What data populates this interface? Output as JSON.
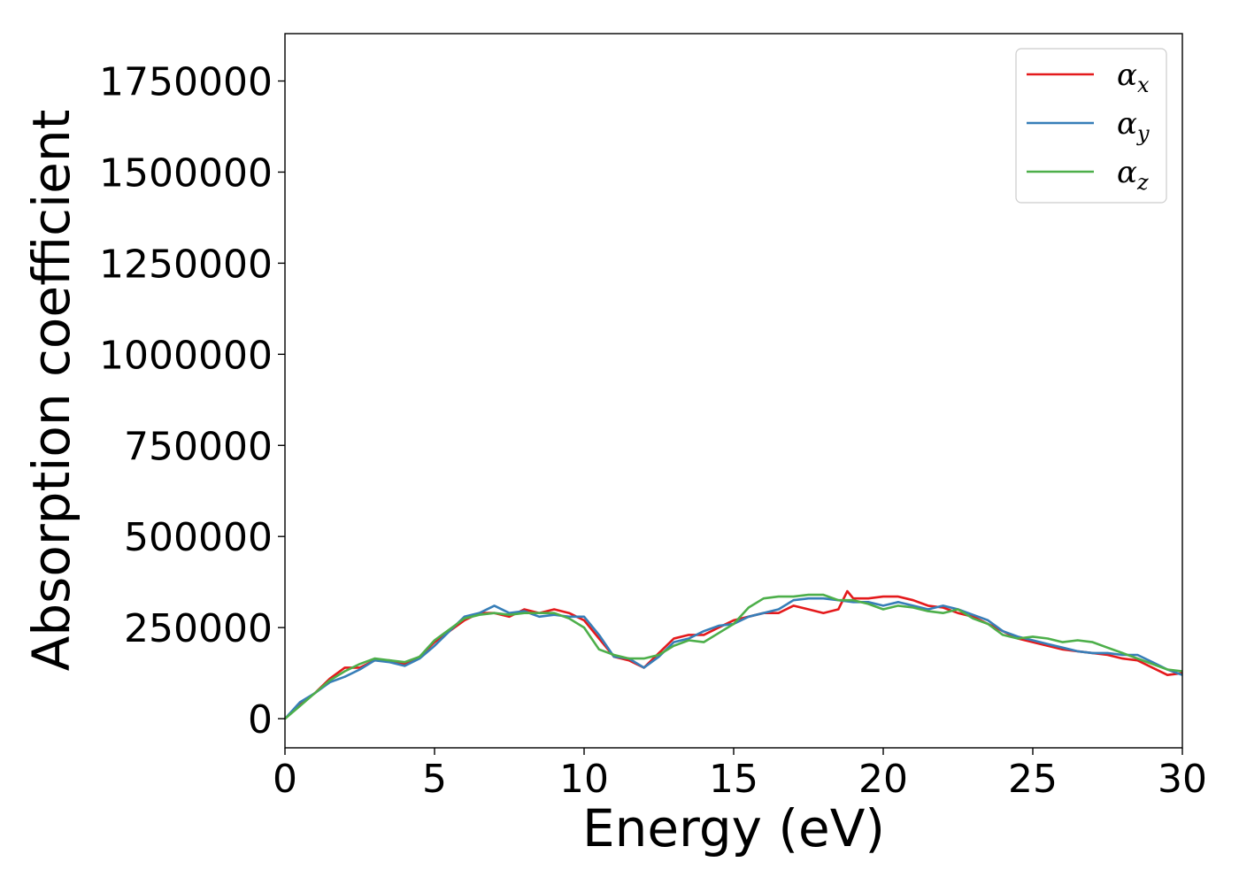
{
  "chart_data": {
    "type": "line",
    "xlabel": "Energy (eV)",
    "ylabel": "Absorption coefficient",
    "xlim": [
      0,
      30
    ],
    "ylim": [
      -80000,
      1880000
    ],
    "x_ticks": [
      0,
      5,
      10,
      15,
      20,
      25,
      30
    ],
    "y_ticks": [
      0,
      250000,
      500000,
      750000,
      1000000,
      1250000,
      1500000,
      1750000
    ],
    "x_tick_labels": [
      "0",
      "5",
      "10",
      "15",
      "20",
      "25",
      "30"
    ],
    "y_tick_labels": [
      "0",
      "250000",
      "500000",
      "750000",
      "1000000",
      "1250000",
      "1500000",
      "1750000"
    ],
    "grid": false,
    "legend_position": "top-right",
    "series": [
      {
        "name": "α_x",
        "legend_base": "α",
        "legend_sub": "x",
        "color": "#e41a1c",
        "x": [
          0,
          0.5,
          1,
          1.5,
          2,
          2.5,
          3,
          3.5,
          4,
          4.5,
          5,
          5.5,
          6,
          6.5,
          7,
          7.5,
          8,
          8.5,
          9,
          9.5,
          10,
          10.5,
          11,
          11.5,
          12,
          12.5,
          13,
          13.5,
          14,
          14.5,
          15,
          15.5,
          16,
          16.5,
          17,
          17.5,
          18,
          18.5,
          18.8,
          19,
          19.5,
          20,
          20.5,
          21,
          21.5,
          22,
          22.5,
          23,
          23.5,
          24,
          24.5,
          25,
          25.5,
          26,
          26.5,
          27,
          27.5,
          28,
          28.5,
          29,
          29.5,
          30
        ],
        "y": [
          0,
          40000,
          70000,
          110000,
          140000,
          140000,
          160000,
          160000,
          150000,
          170000,
          210000,
          240000,
          270000,
          290000,
          290000,
          280000,
          300000,
          290000,
          300000,
          290000,
          270000,
          220000,
          170000,
          160000,
          140000,
          180000,
          220000,
          230000,
          230000,
          250000,
          270000,
          280000,
          290000,
          290000,
          310000,
          300000,
          290000,
          300000,
          350000,
          330000,
          330000,
          335000,
          335000,
          325000,
          310000,
          305000,
          290000,
          280000,
          260000,
          240000,
          220000,
          210000,
          200000,
          190000,
          185000,
          180000,
          175000,
          165000,
          160000,
          140000,
          120000,
          125000
        ]
      },
      {
        "name": "α_y",
        "legend_base": "α",
        "legend_sub": "y",
        "color": "#377eb8",
        "x": [
          0,
          0.5,
          1,
          1.5,
          2,
          2.5,
          3,
          3.5,
          4,
          4.5,
          5,
          5.5,
          6,
          6.5,
          7,
          7.5,
          8,
          8.5,
          9,
          9.5,
          10,
          10.5,
          11,
          11.5,
          12,
          12.5,
          13,
          13.5,
          14,
          14.5,
          15,
          15.5,
          16,
          16.5,
          17,
          17.5,
          18,
          18.5,
          19,
          19.5,
          20,
          20.5,
          21,
          21.5,
          22,
          22.5,
          23,
          23.5,
          24,
          24.5,
          25,
          25.5,
          26,
          26.5,
          27,
          27.5,
          28,
          28.5,
          29,
          29.5,
          30
        ],
        "y": [
          0,
          45000,
          70000,
          100000,
          115000,
          135000,
          160000,
          155000,
          145000,
          165000,
          200000,
          240000,
          280000,
          290000,
          310000,
          290000,
          295000,
          280000,
          285000,
          280000,
          280000,
          230000,
          170000,
          165000,
          140000,
          170000,
          210000,
          220000,
          240000,
          255000,
          260000,
          280000,
          290000,
          300000,
          325000,
          330000,
          330000,
          325000,
          320000,
          320000,
          310000,
          320000,
          310000,
          300000,
          310000,
          300000,
          285000,
          270000,
          240000,
          225000,
          215000,
          205000,
          195000,
          185000,
          180000,
          180000,
          175000,
          175000,
          155000,
          135000,
          120000
        ]
      },
      {
        "name": "α_z",
        "legend_base": "α",
        "legend_sub": "z",
        "color": "#4daf4a",
        "x": [
          0,
          0.5,
          1,
          1.5,
          2,
          2.5,
          3,
          3.5,
          4,
          4.5,
          5,
          5.5,
          6,
          6.5,
          7,
          7.5,
          8,
          8.5,
          9,
          9.5,
          10,
          10.5,
          11,
          11.5,
          12,
          12.5,
          13,
          13.5,
          14,
          14.5,
          15,
          15.5,
          16,
          16.5,
          17,
          17.5,
          18,
          18.5,
          19,
          19.5,
          20,
          20.5,
          21,
          21.5,
          22,
          22.5,
          23,
          23.5,
          24,
          24.5,
          25,
          25.5,
          26,
          26.5,
          27,
          27.5,
          28,
          28.5,
          29,
          29.5,
          30
        ],
        "y": [
          0,
          35000,
          70000,
          105000,
          130000,
          150000,
          165000,
          160000,
          155000,
          170000,
          215000,
          245000,
          275000,
          285000,
          290000,
          285000,
          290000,
          290000,
          290000,
          275000,
          250000,
          190000,
          175000,
          165000,
          165000,
          175000,
          200000,
          215000,
          210000,
          235000,
          260000,
          305000,
          330000,
          335000,
          335000,
          340000,
          340000,
          325000,
          325000,
          315000,
          300000,
          310000,
          305000,
          295000,
          290000,
          300000,
          275000,
          260000,
          230000,
          220000,
          225000,
          220000,
          210000,
          215000,
          210000,
          195000,
          180000,
          165000,
          150000,
          135000,
          130000
        ]
      }
    ]
  }
}
